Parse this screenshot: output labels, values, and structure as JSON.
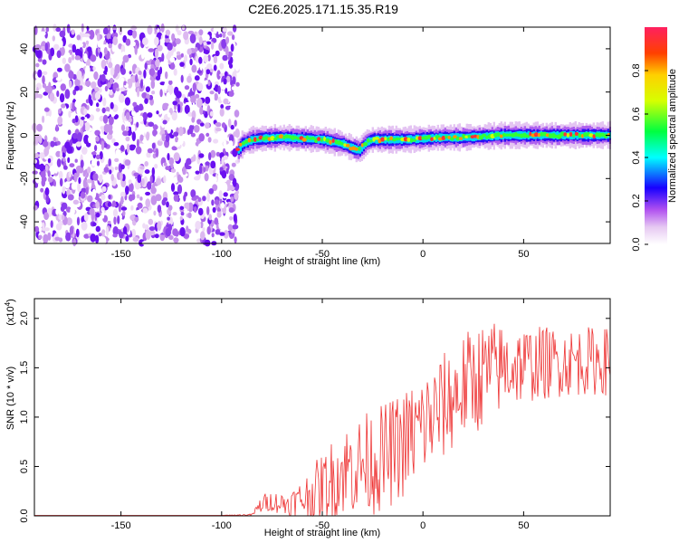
{
  "title": "C2E6.2025.171.15.35.R19",
  "chart_data": [
    {
      "type": "heatmap",
      "xlabel": "Height of straight line (km)",
      "ylabel": "Frequency (Hz)",
      "xlim": [
        -193,
        93
      ],
      "ylim": [
        -50,
        50
      ],
      "x_ticks": [
        -150,
        -100,
        -50,
        0,
        50
      ],
      "y_ticks": [
        -40,
        -20,
        0,
        20,
        40
      ],
      "noise_region_x": [
        -193,
        -92
      ],
      "signal_trace": {
        "x": [
          -92,
          -90,
          -85,
          -80,
          -70,
          -60,
          -50,
          -45,
          -40,
          -35,
          -32,
          -28,
          -25,
          -20,
          -10,
          0,
          10,
          20,
          30,
          40,
          50,
          60,
          70,
          80,
          93
        ],
        "freq": [
          -7,
          -4,
          -2,
          -1.5,
          -1,
          -1.5,
          -2,
          -3,
          -4,
          -6,
          -7,
          -3,
          -2,
          -2,
          -2,
          -1.5,
          -1,
          -1,
          -0.5,
          0,
          0,
          0,
          0,
          0,
          0
        ]
      },
      "colorbar": {
        "label": "Normalized spectral amplitude",
        "range": [
          0,
          1
        ],
        "ticks": [
          "0.0",
          "0.2",
          "0.4",
          "0.6",
          "0.8"
        ]
      }
    },
    {
      "type": "line",
      "xlabel": "Height of straight line (km)",
      "ylabel": "SNR (10 * v/v)",
      "scale_label": "(x10",
      "scale_exp": "4",
      "xlim": [
        -193,
        93
      ],
      "ylim": [
        0,
        2.2
      ],
      "x_ticks": [
        -150,
        -100,
        -50,
        0,
        50
      ],
      "y_ticks": [
        "0.0",
        "0.5",
        "1.0",
        "1.5",
        "2.0"
      ],
      "series": [
        {
          "color": "#ee3333",
          "envelope": {
            "x": [
              -193,
              -100,
              -85,
              -80,
              -75,
              -70,
              -65,
              -60,
              -55,
              -50,
              -45,
              -40,
              -35,
              -30,
              -25,
              -20,
              -15,
              -10,
              -5,
              0,
              5,
              10,
              15,
              20,
              25,
              30,
              35,
              40,
              45,
              50,
              55,
              60,
              65,
              70,
              75,
              80,
              85,
              90,
              93
            ],
            "mean": [
              0.005,
              0.005,
              0.01,
              0.12,
              0.15,
              0.12,
              0.13,
              0.17,
              0.22,
              0.28,
              0.38,
              0.45,
              0.5,
              0.52,
              0.56,
              0.58,
              0.65,
              0.72,
              0.82,
              0.92,
              1.0,
              1.1,
              1.2,
              1.3,
              1.38,
              1.42,
              1.48,
              1.5,
              1.52,
              1.53,
              1.54,
              1.55,
              1.55,
              1.56,
              1.56,
              1.57,
              1.57,
              1.57,
              1.56
            ],
            "spread": [
              0.0,
              0.0,
              0.01,
              0.1,
              0.1,
              0.12,
              0.15,
              0.2,
              0.3,
              0.35,
              0.4,
              0.45,
              0.5,
              0.5,
              0.55,
              0.55,
              0.55,
              0.55,
              0.55,
              0.55,
              0.55,
              0.55,
              0.55,
              0.55,
              0.55,
              0.55,
              0.5,
              0.45,
              0.42,
              0.4,
              0.38,
              0.38,
              0.36,
              0.35,
              0.35,
              0.35,
              0.35,
              0.35,
              0.35
            ]
          }
        }
      ]
    }
  ]
}
